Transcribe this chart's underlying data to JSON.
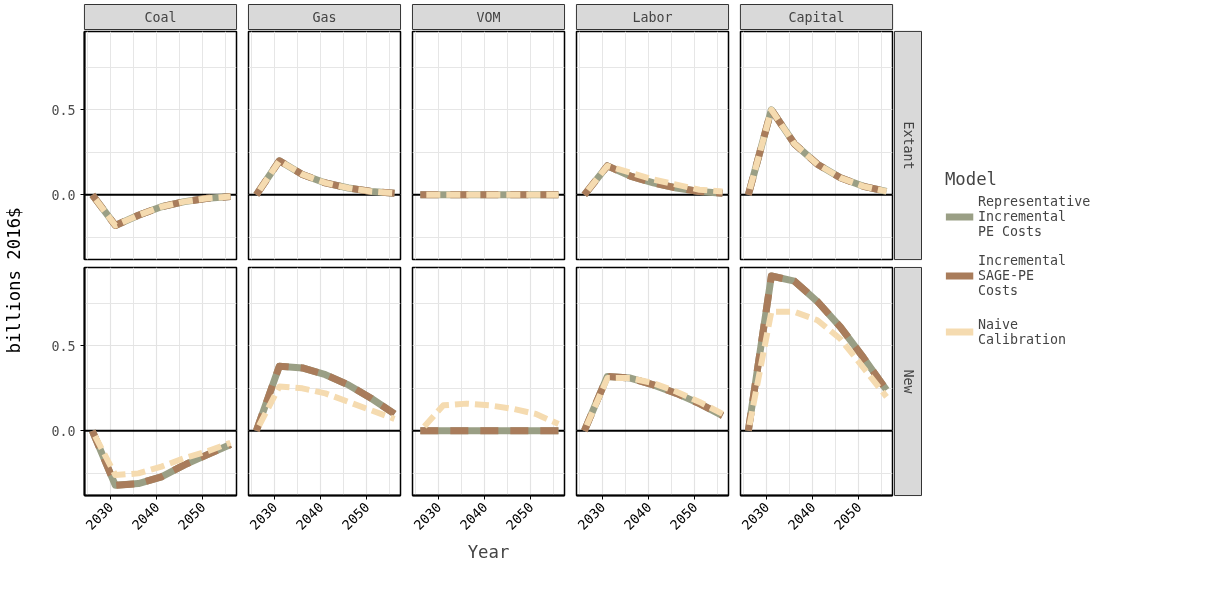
{
  "chart_data": [
    {
      "type": "line",
      "title": "Coal",
      "ylabel": "billions 2016$",
      "legend": "right",
      "legend_title": "Model",
      "grid": true,
      "tick_labels": "y",
      "xlim": [
        2024.3,
        2057.3
      ],
      "ylim": [
        -0.38,
        0.96
      ],
      "xticks": [
        {
          "value": 2030,
          "label": null
        },
        {
          "value": 2040,
          "label": null
        },
        {
          "value": 2050,
          "label": null
        },
        {
          "value": 2025,
          "label": null
        },
        {
          "value": 2035,
          "label": null
        },
        {
          "value": 2045,
          "label": null
        },
        {
          "value": 2055,
          "label": null
        }
      ],
      "yticks": [
        {
          "value": 0,
          "label": "0.0"
        },
        {
          "value": 0.5,
          "label": "0.5"
        },
        {
          "value": -0.25,
          "label": null
        },
        {
          "value": 0.25,
          "label": null
        },
        {
          "value": 0.75,
          "label": null
        }
      ],
      "ref_lines": [
        {
          "axis": "y",
          "value": 0,
          "color": "#000000"
        }
      ],
      "x": [
        2026,
        2031,
        2036,
        2041,
        2046,
        2051,
        2056
      ],
      "series": [
        {
          "name": "Representative Incremental PE Costs",
          "color": "#9a9f85",
          "line_style": "solid",
          "values": [
            0,
            -0.18,
            -0.12,
            -0.07,
            -0.04,
            -0.02,
            -0.01
          ]
        },
        {
          "name": "Incremental SAGE-PE Costs",
          "color": "#a97c5b",
          "line_style": "dashed",
          "values": [
            0,
            -0.18,
            -0.12,
            -0.07,
            -0.04,
            -0.02,
            -0.01
          ]
        },
        {
          "name": "Naive Calibration",
          "color": "#f5dbb0",
          "line_style": "dashed",
          "values": [
            0,
            -0.18,
            -0.12,
            -0.07,
            -0.04,
            -0.02,
            -0.01
          ]
        }
      ]
    },
    {
      "type": "line",
      "title": "Gas",
      "grid": true,
      "tick_labels": false,
      "xlim": [
        2024.3,
        2057.3
      ],
      "ylim": [
        -0.38,
        0.96
      ],
      "xticks": [
        {
          "value": 2030,
          "label": null
        },
        {
          "value": 2040,
          "label": null
        },
        {
          "value": 2050,
          "label": null
        },
        {
          "value": 2025,
          "label": null
        },
        {
          "value": 2035,
          "label": null
        },
        {
          "value": 2045,
          "label": null
        },
        {
          "value": 2055,
          "label": null
        }
      ],
      "yticks": [
        {
          "value": 0,
          "label": null
        },
        {
          "value": 0.5,
          "label": null
        },
        {
          "value": -0.25,
          "label": null
        },
        {
          "value": 0.25,
          "label": null
        },
        {
          "value": 0.75,
          "label": null
        }
      ],
      "ref_lines": [
        {
          "axis": "y",
          "value": 0,
          "color": "#000000"
        }
      ],
      "x": [
        2026,
        2031,
        2036,
        2041,
        2046,
        2051,
        2056
      ],
      "series": [
        {
          "color": "#9a9f85",
          "line_style": "solid",
          "values": [
            0,
            0.2,
            0.12,
            0.07,
            0.04,
            0.02,
            0.01
          ]
        },
        {
          "color": "#a97c5b",
          "line_style": "dashed",
          "values": [
            0,
            0.2,
            0.12,
            0.07,
            0.04,
            0.02,
            0.01
          ]
        },
        {
          "color": "#f5dbb0",
          "line_style": "dashed",
          "values": [
            0,
            0.2,
            0.12,
            0.07,
            0.04,
            0.02,
            0.01
          ]
        }
      ]
    },
    {
      "type": "line",
      "title": "VOM",
      "grid": true,
      "tick_labels": false,
      "xlim": [
        2024.3,
        2057.3
      ],
      "ylim": [
        -0.38,
        0.96
      ],
      "xticks": [
        {
          "value": 2030,
          "label": null
        },
        {
          "value": 2040,
          "label": null
        },
        {
          "value": 2050,
          "label": null
        },
        {
          "value": 2025,
          "label": null
        },
        {
          "value": 2035,
          "label": null
        },
        {
          "value": 2045,
          "label": null
        },
        {
          "value": 2055,
          "label": null
        }
      ],
      "yticks": [
        {
          "value": 0,
          "label": null
        },
        {
          "value": 0.5,
          "label": null
        },
        {
          "value": -0.25,
          "label": null
        },
        {
          "value": 0.25,
          "label": null
        },
        {
          "value": 0.75,
          "label": null
        }
      ],
      "ref_lines": [
        {
          "axis": "y",
          "value": 0,
          "color": "#000000"
        }
      ],
      "x": [
        2026,
        2031,
        2036,
        2041,
        2046,
        2051,
        2056
      ],
      "series": [
        {
          "color": "#9a9f85",
          "line_style": "solid",
          "values": [
            0,
            0,
            0,
            0,
            0,
            0,
            0
          ]
        },
        {
          "color": "#a97c5b",
          "line_style": "dashed",
          "values": [
            0,
            0,
            0,
            0,
            0,
            0,
            0
          ]
        },
        {
          "color": "#f5dbb0",
          "line_style": "dashed",
          "values": [
            0,
            0,
            0,
            0,
            0,
            0,
            0
          ]
        }
      ]
    },
    {
      "type": "line",
      "title": "Labor",
      "grid": true,
      "tick_labels": false,
      "xlim": [
        2024.3,
        2057.3
      ],
      "ylim": [
        -0.38,
        0.96
      ],
      "xticks": [
        {
          "value": 2030,
          "label": null
        },
        {
          "value": 2040,
          "label": null
        },
        {
          "value": 2050,
          "label": null
        },
        {
          "value": 2025,
          "label": null
        },
        {
          "value": 2035,
          "label": null
        },
        {
          "value": 2045,
          "label": null
        },
        {
          "value": 2055,
          "label": null
        }
      ],
      "yticks": [
        {
          "value": 0,
          "label": null
        },
        {
          "value": 0.5,
          "label": null
        },
        {
          "value": -0.25,
          "label": null
        },
        {
          "value": 0.25,
          "label": null
        },
        {
          "value": 0.75,
          "label": null
        }
      ],
      "ref_lines": [
        {
          "axis": "y",
          "value": 0,
          "color": "#000000"
        }
      ],
      "x": [
        2026,
        2031,
        2036,
        2041,
        2046,
        2051,
        2056
      ],
      "series": [
        {
          "color": "#9a9f85",
          "line_style": "solid",
          "values": [
            0,
            0.17,
            0.11,
            0.07,
            0.04,
            0.02,
            0.01
          ]
        },
        {
          "color": "#a97c5b",
          "line_style": "dashed",
          "values": [
            0,
            0.17,
            0.11,
            0.07,
            0.04,
            0.02,
            0.01
          ]
        },
        {
          "color": "#f5dbb0",
          "line_style": "dashed",
          "values": [
            0,
            0.17,
            0.13,
            0.09,
            0.06,
            0.03,
            0.02
          ]
        }
      ]
    },
    {
      "type": "line",
      "title": "Capital",
      "annotations": [
        "Extant"
      ],
      "grid": true,
      "tick_labels": false,
      "xlim": [
        2024.3,
        2057.3
      ],
      "ylim": [
        -0.38,
        0.96
      ],
      "xticks": [
        {
          "value": 2030,
          "label": null
        },
        {
          "value": 2040,
          "label": null
        },
        {
          "value": 2050,
          "label": null
        },
        {
          "value": 2025,
          "label": null
        },
        {
          "value": 2035,
          "label": null
        },
        {
          "value": 2045,
          "label": null
        },
        {
          "value": 2055,
          "label": null
        }
      ],
      "yticks": [
        {
          "value": 0,
          "label": null
        },
        {
          "value": 0.5,
          "label": null
        },
        {
          "value": -0.25,
          "label": null
        },
        {
          "value": 0.25,
          "label": null
        },
        {
          "value": 0.75,
          "label": null
        }
      ],
      "ref_lines": [
        {
          "axis": "y",
          "value": 0,
          "color": "#000000"
        }
      ],
      "x": [
        2026,
        2031,
        2036,
        2041,
        2046,
        2051,
        2056
      ],
      "series": [
        {
          "color": "#9a9f85",
          "line_style": "solid",
          "values": [
            0,
            0.5,
            0.3,
            0.18,
            0.1,
            0.05,
            0.02
          ]
        },
        {
          "color": "#a97c5b",
          "line_style": "dashed",
          "values": [
            0,
            0.5,
            0.3,
            0.18,
            0.1,
            0.05,
            0.02
          ]
        },
        {
          "color": "#f5dbb0",
          "line_style": "dashed",
          "values": [
            0,
            0.5,
            0.3,
            0.18,
            0.1,
            0.05,
            0.02
          ]
        }
      ]
    },
    {
      "type": "line",
      "grid": true,
      "xlim": [
        2024.3,
        2057.3
      ],
      "ylim": [
        -0.38,
        0.96
      ],
      "xticks": [
        2030,
        2040,
        2050,
        {
          "value": 2025,
          "label": null
        },
        {
          "value": 2035,
          "label": null
        },
        {
          "value": 2045,
          "label": null
        },
        {
          "value": 2055,
          "label": null
        }
      ],
      "yticks": [
        {
          "value": 0,
          "label": "0.0"
        },
        {
          "value": 0.5,
          "label": "0.5"
        },
        {
          "value": -0.25,
          "label": null
        },
        {
          "value": 0.25,
          "label": null
        },
        {
          "value": 0.75,
          "label": null
        }
      ],
      "ref_lines": [
        {
          "axis": "y",
          "value": 0,
          "color": "#000000"
        }
      ],
      "x": [
        2026,
        2031,
        2036,
        2041,
        2046,
        2051,
        2056
      ],
      "series": [
        {
          "color": "#9a9f85",
          "line_style": "solid",
          "values": [
            0,
            -0.32,
            -0.31,
            -0.27,
            -0.2,
            -0.14,
            -0.08
          ]
        },
        {
          "color": "#a97c5b",
          "line_style": "dashed",
          "values": [
            0,
            -0.32,
            -0.31,
            -0.27,
            -0.2,
            -0.14,
            -0.08
          ]
        },
        {
          "color": "#f5dbb0",
          "line_style": "dashed",
          "values": [
            0,
            -0.26,
            -0.25,
            -0.21,
            -0.16,
            -0.12,
            -0.07
          ]
        }
      ]
    },
    {
      "type": "line",
      "grid": true,
      "tick_labels": "x",
      "xlim": [
        2024.3,
        2057.3
      ],
      "ylim": [
        -0.38,
        0.96
      ],
      "xticks": [
        2030,
        2040,
        2050,
        {
          "value": 2025,
          "label": null
        },
        {
          "value": 2035,
          "label": null
        },
        {
          "value": 2045,
          "label": null
        },
        {
          "value": 2055,
          "label": null
        }
      ],
      "yticks": [
        {
          "value": 0,
          "label": null
        },
        {
          "value": 0.5,
          "label": null
        },
        {
          "value": -0.25,
          "label": null
        },
        {
          "value": 0.25,
          "label": null
        },
        {
          "value": 0.75,
          "label": null
        }
      ],
      "ref_lines": [
        {
          "axis": "y",
          "value": 0,
          "color": "#000000"
        }
      ],
      "x": [
        2026,
        2031,
        2036,
        2041,
        2046,
        2051,
        2056
      ],
      "series": [
        {
          "color": "#9a9f85",
          "line_style": "solid",
          "values": [
            0,
            0.38,
            0.37,
            0.33,
            0.27,
            0.19,
            0.1
          ]
        },
        {
          "color": "#a97c5b",
          "line_style": "dashed",
          "values": [
            0,
            0.38,
            0.37,
            0.33,
            0.27,
            0.19,
            0.1
          ]
        },
        {
          "color": "#f5dbb0",
          "line_style": "dashed",
          "values": [
            0,
            0.26,
            0.25,
            0.22,
            0.17,
            0.12,
            0.07
          ]
        }
      ]
    },
    {
      "type": "line",
      "xlabel": "Year",
      "grid": true,
      "tick_labels": "x",
      "xlim": [
        2024.3,
        2057.3
      ],
      "ylim": [
        -0.38,
        0.96
      ],
      "xticks": [
        2030,
        2040,
        2050,
        {
          "value": 2025,
          "label": null
        },
        {
          "value": 2035,
          "label": null
        },
        {
          "value": 2045,
          "label": null
        },
        {
          "value": 2055,
          "label": null
        }
      ],
      "yticks": [
        {
          "value": 0,
          "label": null
        },
        {
          "value": 0.5,
          "label": null
        },
        {
          "value": -0.25,
          "label": null
        },
        {
          "value": 0.25,
          "label": null
        },
        {
          "value": 0.75,
          "label": null
        }
      ],
      "ref_lines": [
        {
          "axis": "y",
          "value": 0,
          "color": "#000000"
        }
      ],
      "x": [
        2026,
        2031,
        2036,
        2041,
        2046,
        2051,
        2056
      ],
      "series": [
        {
          "color": "#9a9f85",
          "line_style": "solid",
          "values": [
            0,
            0,
            0,
            0,
            0,
            0,
            0
          ]
        },
        {
          "color": "#a97c5b",
          "line_style": "dashed",
          "values": [
            0,
            0,
            0,
            0,
            0,
            0,
            0
          ]
        },
        {
          "color": "#f5dbb0",
          "line_style": "dashed",
          "values": [
            0,
            0.15,
            0.16,
            0.15,
            0.13,
            0.1,
            0.04
          ]
        }
      ]
    },
    {
      "type": "line",
      "grid": true,
      "tick_labels": "x",
      "xlim": [
        2024.3,
        2057.3
      ],
      "ylim": [
        -0.38,
        0.96
      ],
      "xticks": [
        2030,
        2040,
        2050,
        {
          "value": 2025,
          "label": null
        },
        {
          "value": 2035,
          "label": null
        },
        {
          "value": 2045,
          "label": null
        },
        {
          "value": 2055,
          "label": null
        }
      ],
      "yticks": [
        {
          "value": 0,
          "label": null
        },
        {
          "value": 0.5,
          "label": null
        },
        {
          "value": -0.25,
          "label": null
        },
        {
          "value": 0.25,
          "label": null
        },
        {
          "value": 0.75,
          "label": null
        }
      ],
      "ref_lines": [
        {
          "axis": "y",
          "value": 0,
          "color": "#000000"
        }
      ],
      "x": [
        2026,
        2031,
        2036,
        2041,
        2046,
        2051,
        2056
      ],
      "series": [
        {
          "color": "#9a9f85",
          "line_style": "solid",
          "values": [
            0,
            0.32,
            0.31,
            0.27,
            0.22,
            0.16,
            0.09
          ]
        },
        {
          "color": "#a97c5b",
          "line_style": "dashed",
          "values": [
            0,
            0.32,
            0.31,
            0.27,
            0.22,
            0.16,
            0.09
          ]
        },
        {
          "color": "#f5dbb0",
          "line_style": "dashed",
          "values": [
            0,
            0.31,
            0.31,
            0.28,
            0.23,
            0.17,
            0.1
          ]
        }
      ]
    },
    {
      "type": "line",
      "annotations": [
        "New"
      ],
      "grid": true,
      "tick_labels": "x",
      "xlim": [
        2024.3,
        2057.3
      ],
      "ylim": [
        -0.38,
        0.96
      ],
      "xticks": [
        2030,
        2040,
        2050,
        {
          "value": 2025,
          "label": null
        },
        {
          "value": 2035,
          "label": null
        },
        {
          "value": 2045,
          "label": null
        },
        {
          "value": 2055,
          "label": null
        }
      ],
      "yticks": [
        {
          "value": 0,
          "label": null
        },
        {
          "value": 0.5,
          "label": null
        },
        {
          "value": -0.25,
          "label": null
        },
        {
          "value": 0.25,
          "label": null
        },
        {
          "value": 0.75,
          "label": null
        }
      ],
      "ref_lines": [
        {
          "axis": "y",
          "value": 0,
          "color": "#000000"
        }
      ],
      "x": [
        2026,
        2031,
        2036,
        2041,
        2046,
        2051,
        2056
      ],
      "series": [
        {
          "color": "#9a9f85",
          "line_style": "solid",
          "values": [
            0,
            0.91,
            0.88,
            0.76,
            0.61,
            0.43,
            0.24
          ]
        },
        {
          "color": "#a97c5b",
          "line_style": "dashed",
          "values": [
            0,
            0.91,
            0.88,
            0.76,
            0.61,
            0.43,
            0.24
          ]
        },
        {
          "color": "#f5dbb0",
          "line_style": "dashed",
          "values": [
            0,
            0.7,
            0.7,
            0.65,
            0.54,
            0.37,
            0.2
          ]
        }
      ]
    }
  ]
}
